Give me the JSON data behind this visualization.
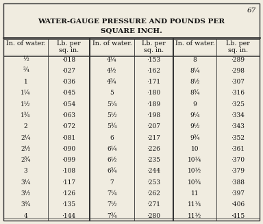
{
  "page_number": "67",
  "title_line1": "WATER-GAUGE PRESSURE AND POUNDS PER",
  "title_line2": "SQUARE INCH.",
  "col_headers_top": [
    "In. of water.",
    "Lb. per",
    "In. of water.",
    "Lb. per",
    "In. of water.",
    "Lb. per"
  ],
  "col_headers_bot": [
    "",
    "sq. in.",
    "",
    "sq. in.",
    "",
    "sq. in."
  ],
  "col1_water": [
    "½",
    "¾",
    "1",
    "1¼",
    "1½",
    "1¾",
    "2",
    "2¼",
    "2½",
    "2¾",
    "3",
    "3¼",
    "3½",
    "3¾",
    "4"
  ],
  "col1_lb": [
    "·018",
    "·027",
    "·036",
    "·045",
    "·054",
    "·063",
    "·072",
    "·081",
    "·090",
    "·099",
    "·108",
    "·117",
    "·126",
    "·135",
    "·144"
  ],
  "col2_water": [
    "4¼",
    "4½",
    "4¾",
    "5",
    "5¼",
    "5½",
    "5¾",
    "6",
    "6¼",
    "6½",
    "6¾",
    "7",
    "7¼",
    "7½",
    "7¾"
  ],
  "col2_lb": [
    "·153",
    "·162",
    "·171",
    "·180",
    "·189",
    "·198",
    "·207",
    "·217",
    "·226",
    "·235",
    "·244",
    "·253",
    "·262",
    "·271",
    "·280"
  ],
  "col3_water": [
    "8",
    "8¼",
    "8½",
    "8¾",
    "9",
    "9¼",
    "9½",
    "9¾",
    "10",
    "10¼",
    "10½",
    "10¾",
    "11",
    "11¼",
    "11½"
  ],
  "col3_lb": [
    "·289",
    "·298",
    "·307",
    "·316",
    "·325",
    "·334",
    "·343",
    "·352",
    "·361",
    "·370",
    "·379",
    "·388",
    "·397",
    "·406",
    "·415"
  ],
  "bg_color": "#f0ece0",
  "text_color": "#111111",
  "border_color": "#333333",
  "title_fontsize": 7.5,
  "header_fontsize": 6.8,
  "data_fontsize": 6.5,
  "page_num_fontsize": 7.5
}
